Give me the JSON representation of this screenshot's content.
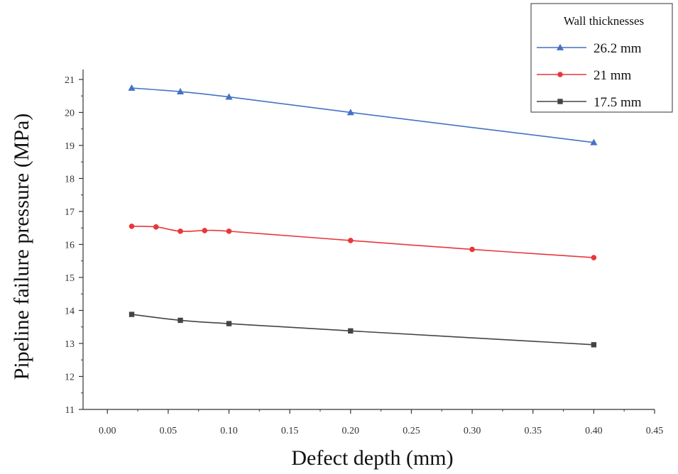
{
  "chart_data": {
    "type": "line",
    "xlabel": "Defect depth (mm)",
    "ylabel": "Pipeline failure pressure (MPa)",
    "xlim": [
      -0.02,
      0.45
    ],
    "ylim": [
      11,
      21.3
    ],
    "xticks": [
      0.0,
      0.05,
      0.1,
      0.15,
      0.2,
      0.25,
      0.3,
      0.35,
      0.4,
      0.45
    ],
    "xtick_labels": [
      "0.00",
      "0.05",
      "0.10",
      "0.15",
      "0.20",
      "0.25",
      "0.30",
      "0.35",
      "0.40",
      "0.45"
    ],
    "yticks": [
      11,
      12,
      13,
      14,
      15,
      16,
      17,
      18,
      19,
      20,
      21
    ],
    "ytick_labels": [
      "11",
      "12",
      "13",
      "14",
      "15",
      "16",
      "17",
      "18",
      "19",
      "20",
      "21"
    ],
    "grid": false,
    "legend": {
      "title": "Wall thicknesses",
      "position": "top-right"
    },
    "series": [
      {
        "name": "26.2 mm",
        "color": "#4472C4",
        "marker": "triangle",
        "x": [
          0.02,
          0.06,
          0.1,
          0.2,
          0.4
        ],
        "y": [
          20.74,
          20.63,
          20.47,
          20.0,
          19.09
        ]
      },
      {
        "name": "21 mm",
        "color": "#E8373A",
        "marker": "circle",
        "x": [
          0.02,
          0.04,
          0.06,
          0.08,
          0.1,
          0.2,
          0.3,
          0.4
        ],
        "y": [
          16.55,
          16.53,
          16.4,
          16.42,
          16.4,
          16.12,
          15.85,
          15.6
        ]
      },
      {
        "name": "17.5 mm",
        "color": "#444444",
        "marker": "square",
        "x": [
          0.02,
          0.06,
          0.1,
          0.2,
          0.4
        ],
        "y": [
          13.88,
          13.7,
          13.6,
          13.38,
          12.96
        ]
      }
    ]
  }
}
